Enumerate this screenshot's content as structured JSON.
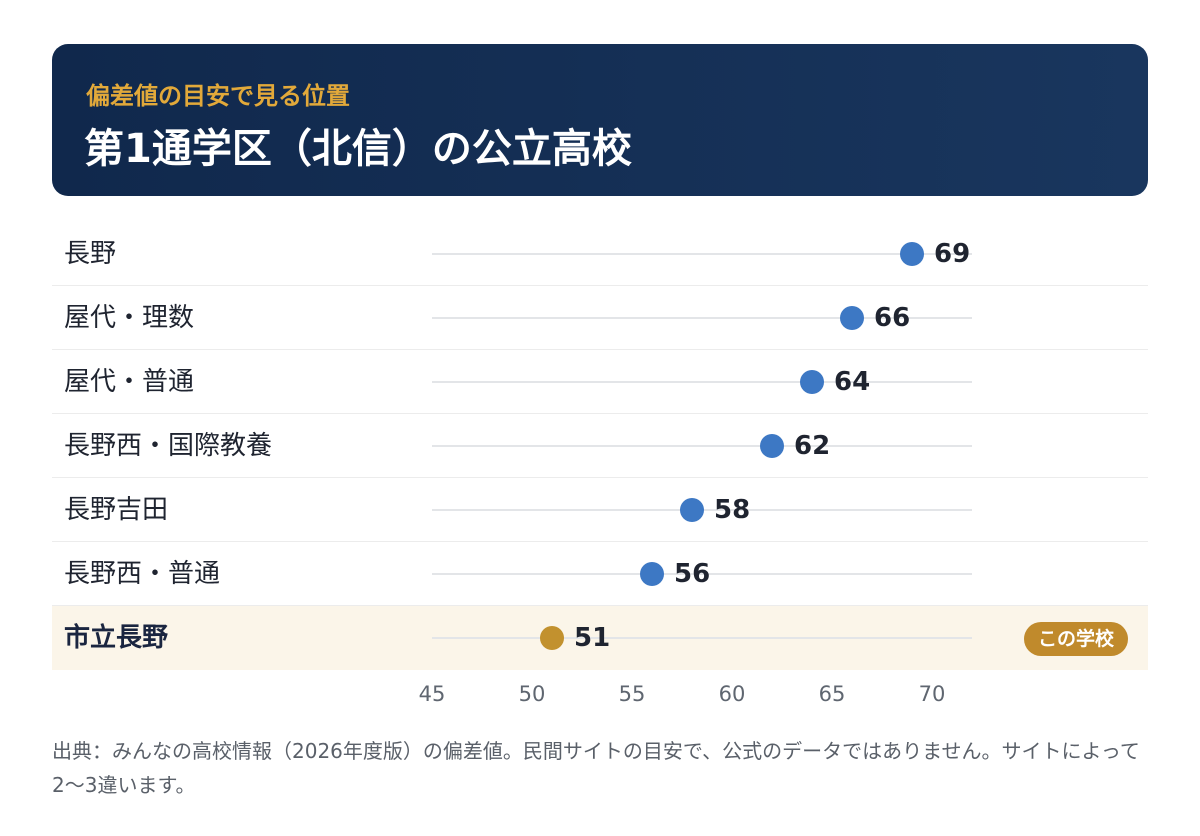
{
  "header": {
    "eyebrow": "偏差値の目安で見る位置",
    "title": "第1通学区（北信）の公立高校"
  },
  "chart_data": {
    "type": "scatter",
    "categories": [
      "長野",
      "屋代・理数",
      "屋代・普通",
      "長野西・国際教養",
      "長野吉田",
      "長野西・普通",
      "市立長野"
    ],
    "values": [
      69,
      66,
      64,
      62,
      58,
      56,
      51
    ],
    "highlight_index": 6,
    "highlight_badge": "この学校",
    "xlim": [
      45,
      72
    ],
    "x_ticks": [
      "45",
      "50",
      "55",
      "60",
      "65",
      "70"
    ],
    "grid": false
  },
  "colors": {
    "header_bg": "#10284c",
    "accent_gold": "#c2912e",
    "dot_blue": "#3d78c4",
    "highlight_bg": "#fbf5e9"
  },
  "footnote": "出典：みんなの高校情報（2026年度版）の偏差値。民間サイトの目安で、公式のデータではありません。サイトによって2〜3違います。"
}
